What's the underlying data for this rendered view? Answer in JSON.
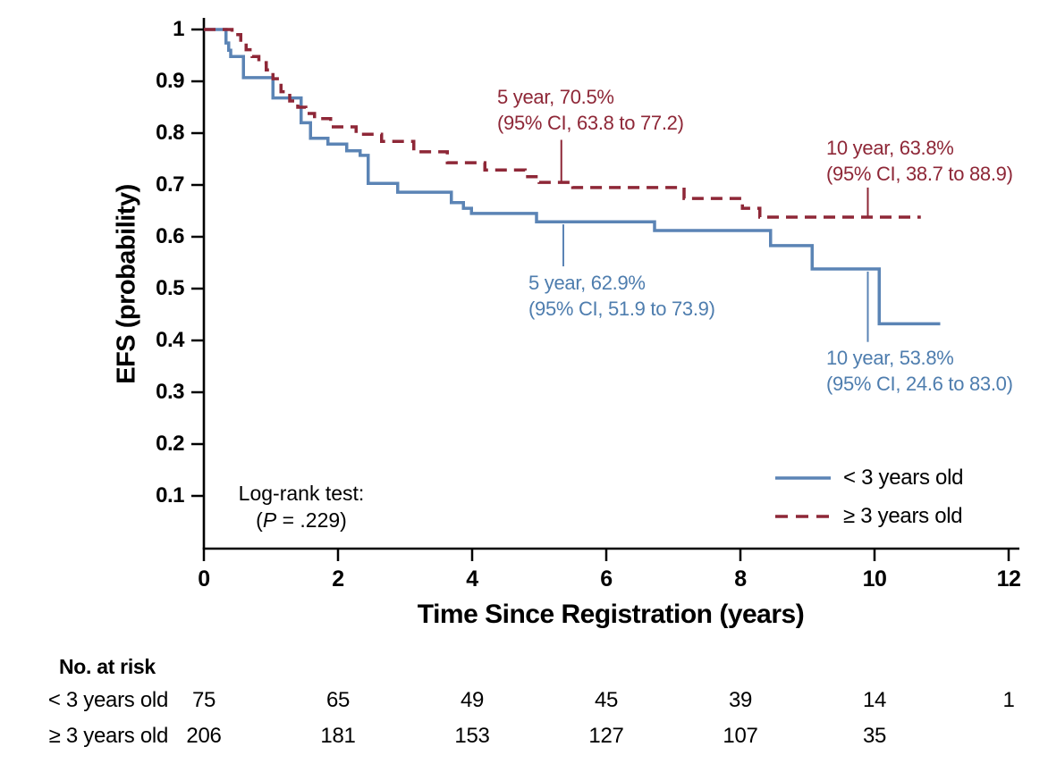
{
  "colors": {
    "blue_line": "#5B84B5",
    "red_line": "#8E2737",
    "blue_text": "#4E7DAE",
    "red_text": "#8E2737",
    "axis": "#000000"
  },
  "y_axis": {
    "title": "EFS (probability)",
    "ticks": [
      {
        "v": 1.0,
        "label": "1"
      },
      {
        "v": 0.9,
        "label": "0.9"
      },
      {
        "v": 0.8,
        "label": "0.8"
      },
      {
        "v": 0.7,
        "label": "0.7"
      },
      {
        "v": 0.6,
        "label": "0.6"
      },
      {
        "v": 0.5,
        "label": "0.5"
      },
      {
        "v": 0.4,
        "label": "0.4"
      },
      {
        "v": 0.3,
        "label": "0.3"
      },
      {
        "v": 0.2,
        "label": "0.2"
      },
      {
        "v": 0.1,
        "label": "0.1"
      }
    ]
  },
  "x_axis": {
    "title": "Time Since Registration (years)",
    "ticks": [
      {
        "v": 0,
        "label": "0"
      },
      {
        "v": 2,
        "label": "2"
      },
      {
        "v": 4,
        "label": "4"
      },
      {
        "v": 6,
        "label": "6"
      },
      {
        "v": 8,
        "label": "8"
      },
      {
        "v": 10,
        "label": "10"
      },
      {
        "v": 12,
        "label": "12"
      }
    ]
  },
  "stats": {
    "line1": "Log-rank test:",
    "p_open": "(",
    "p_symbol": "P",
    "p_rest": " = .229)"
  },
  "legend": {
    "items": [
      {
        "label": "< 3 years old",
        "style": "solid",
        "color": "#5B84B5"
      },
      {
        "label": "≥ 3 years old",
        "style": "dashed",
        "color": "#8E2737"
      }
    ]
  },
  "annotations": {
    "red5": {
      "line1": "5 year, 70.5%",
      "line2": "(95% CI, 63.8 to 77.2)",
      "leader": {
        "t": 5.33,
        "p1": 0.787,
        "p2": 0.706
      }
    },
    "red10": {
      "line1": "10 year, 63.8%",
      "line2": "(95% CI, 38.7 to 88.9)",
      "leader": {
        "t": 9.9,
        "p1": 0.695,
        "p2": 0.64
      }
    },
    "blue5": {
      "line1": "5 year, 62.9%",
      "line2": "(95% CI, 51.9 to 73.9)",
      "leader": {
        "t": 5.36,
        "p1": 0.624,
        "p2": 0.543
      }
    },
    "blue10": {
      "line1": "10 year, 53.8%",
      "line2": "(95% CI, 24.6 to 83.0)",
      "leader": {
        "t": 9.9,
        "p1": 0.533,
        "p2": 0.397
      }
    }
  },
  "risk_table": {
    "header": "No. at risk",
    "time_points": [
      0,
      2,
      4,
      6,
      8,
      10,
      12
    ],
    "rows": [
      {
        "label": "< 3 years old",
        "values": [
          "75",
          "65",
          "49",
          "45",
          "39",
          "14",
          "1"
        ]
      },
      {
        "label": "≥ 3 years old",
        "values": [
          "206",
          "181",
          "153",
          "127",
          "107",
          "35",
          ""
        ]
      }
    ]
  },
  "chart_data": {
    "type": "line",
    "subtype": "kaplan-meier-step",
    "title": "",
    "xlabel": "Time Since Registration (years)",
    "ylabel": "EFS (probability)",
    "xlim": [
      0,
      12.2
    ],
    "ylim": [
      0,
      1
    ],
    "grid": false,
    "legend_position": "lower-right-inside",
    "series": [
      {
        "name": "< 3 years old",
        "style": "solid",
        "color": "#5B84B5",
        "end_x": 10.98,
        "points": [
          [
            0,
            1.0
          ],
          [
            0.33,
            0.974
          ],
          [
            0.37,
            0.96
          ],
          [
            0.4,
            0.948
          ],
          [
            0.59,
            0.907
          ],
          [
            1.03,
            0.868
          ],
          [
            1.45,
            0.82
          ],
          [
            1.59,
            0.79
          ],
          [
            1.85,
            0.779
          ],
          [
            2.13,
            0.766
          ],
          [
            2.33,
            0.757
          ],
          [
            2.45,
            0.703
          ],
          [
            2.89,
            0.686
          ],
          [
            3.69,
            0.666
          ],
          [
            3.87,
            0.655
          ],
          [
            3.99,
            0.645
          ],
          [
            4.96,
            0.629
          ],
          [
            6.72,
            0.612
          ],
          [
            8.45,
            0.583
          ],
          [
            9.07,
            0.538
          ],
          [
            10.07,
            0.432
          ]
        ]
      },
      {
        "name": "≥ 3 years old",
        "style": "dashed",
        "color": "#8E2737",
        "end_x": 10.69,
        "points": [
          [
            0,
            1.0
          ],
          [
            0.42,
            0.99
          ],
          [
            0.55,
            0.975
          ],
          [
            0.63,
            0.961
          ],
          [
            0.72,
            0.948
          ],
          [
            0.82,
            0.936
          ],
          [
            0.93,
            0.922
          ],
          [
            1.03,
            0.905
          ],
          [
            1.15,
            0.88
          ],
          [
            1.28,
            0.862
          ],
          [
            1.4,
            0.85
          ],
          [
            1.52,
            0.838
          ],
          [
            1.65,
            0.828
          ],
          [
            1.89,
            0.812
          ],
          [
            2.27,
            0.798
          ],
          [
            2.65,
            0.784
          ],
          [
            3.13,
            0.764
          ],
          [
            3.63,
            0.743
          ],
          [
            4.19,
            0.729
          ],
          [
            4.79,
            0.716
          ],
          [
            5.0,
            0.705
          ],
          [
            5.5,
            0.695
          ],
          [
            7.16,
            0.674
          ],
          [
            8.03,
            0.655
          ],
          [
            8.29,
            0.638
          ]
        ]
      }
    ],
    "annotated_values": {
      "lt3_5yr": 62.9,
      "lt3_5yr_ci": [
        51.9,
        73.9
      ],
      "lt3_10yr": 53.8,
      "lt3_10yr_ci": [
        24.6,
        83.0
      ],
      "ge3_5yr": 70.5,
      "ge3_5yr_ci": [
        63.8,
        77.2
      ],
      "ge3_10yr": 63.8,
      "ge3_10yr_ci": [
        38.7,
        88.9
      ],
      "logrank_p": 0.229
    }
  }
}
